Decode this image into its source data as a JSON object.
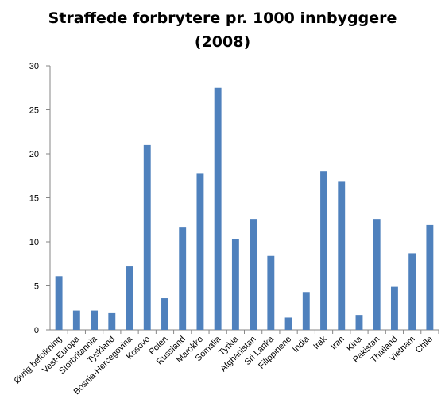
{
  "chart_data": {
    "type": "bar",
    "title": "Straffede forbrytere pr. 1000 innbyggere (2008)",
    "categories": [
      "Øvrig befolkning",
      "Vest-Europa",
      "Storbritannia",
      "Tyskland",
      "Bosnia-Hercegovina",
      "Kosovo",
      "Polen",
      "Russland",
      "Marokko",
      "Somalia",
      "Tyrkia",
      "Afghanistan",
      "Sri Lanka",
      "Filippinene",
      "India",
      "Irak",
      "Iran",
      "Kina",
      "Pakistan",
      "Thailand",
      "Vietnam",
      "Chile"
    ],
    "values": [
      6.1,
      2.2,
      2.2,
      1.9,
      7.2,
      21.0,
      3.6,
      11.7,
      17.8,
      27.5,
      10.3,
      12.6,
      8.4,
      1.4,
      4.3,
      18.0,
      16.9,
      1.7,
      12.6,
      4.9,
      8.7,
      11.9
    ],
    "color": "#4f81bd",
    "ylim": [
      0,
      30
    ],
    "yticks": [
      0,
      5,
      10,
      15,
      20,
      25,
      30
    ],
    "grid": false
  }
}
